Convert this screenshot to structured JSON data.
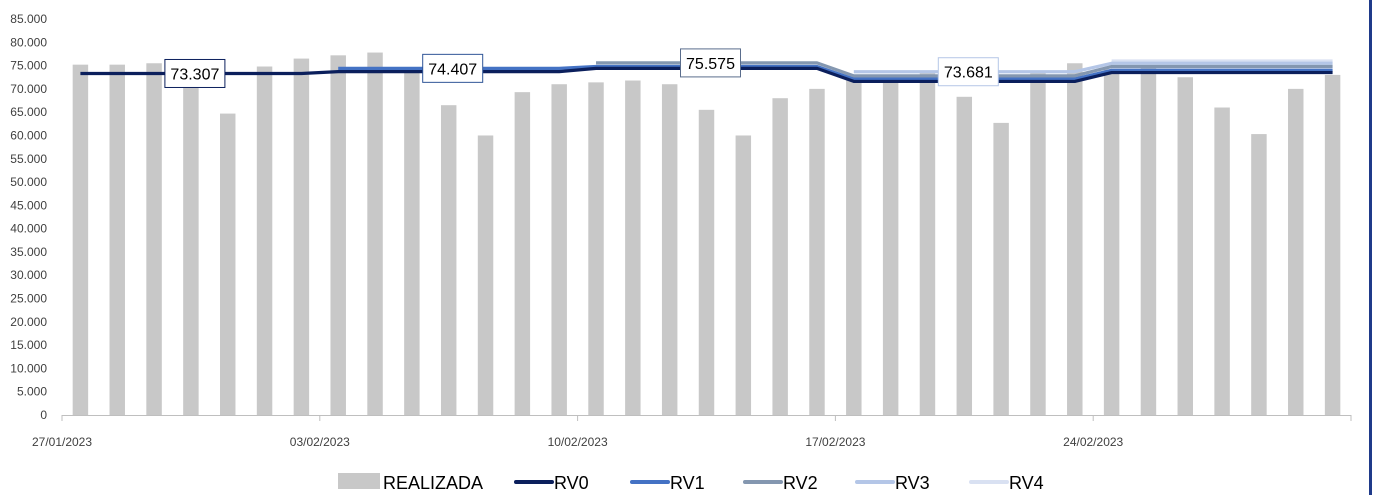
{
  "chart_data": {
    "type": "bar",
    "y_ticks": [
      "0",
      "5.000",
      "10.000",
      "15.000",
      "20.000",
      "25.000",
      "30.000",
      "35.000",
      "40.000",
      "45.000",
      "50.000",
      "55.000",
      "60.000",
      "65.000",
      "70.000",
      "75.000",
      "80.000",
      "85.000"
    ],
    "ylim": [
      0,
      85000
    ],
    "x_tick_labels": [
      "27/01/2023",
      "03/02/2023",
      "10/02/2023",
      "17/02/2023",
      "24/02/2023"
    ],
    "bar_series": {
      "name": "REALIZADA",
      "color": "#c8c8c8",
      "values": [
        75200,
        75200,
        75500,
        71500,
        64700,
        74800,
        76500,
        77200,
        77800,
        74000,
        66500,
        60000,
        69300,
        71000,
        71400,
        71800,
        71000,
        65500,
        60000,
        68000,
        70000,
        72500,
        73000,
        73800,
        68300,
        62700,
        73500,
        75500,
        74200,
        75000,
        72500,
        66000,
        60300,
        70000,
        73000
      ]
    },
    "line_series": [
      {
        "name": "RV0",
        "color": "#0b1f5c",
        "segments": [
          {
            "from": 0,
            "to": 6,
            "value": 73307
          },
          {
            "from": 7,
            "to": 13,
            "value": 73700
          },
          {
            "from": 14,
            "to": 20,
            "value": 74400
          },
          {
            "from": 21,
            "to": 27,
            "value": 71600
          },
          {
            "from": 28,
            "to": 34,
            "value": 73500
          }
        ]
      },
      {
        "name": "RV1",
        "color": "#4472c4",
        "segments": [
          {
            "from": 7,
            "to": 13,
            "value": 74407
          },
          {
            "from": 14,
            "to": 20,
            "value": 74800
          },
          {
            "from": 21,
            "to": 27,
            "value": 72100
          },
          {
            "from": 28,
            "to": 34,
            "value": 74000
          }
        ]
      },
      {
        "name": "RV2",
        "color": "#8497b0",
        "segments": [
          {
            "from": 14,
            "to": 20,
            "value": 75575
          },
          {
            "from": 21,
            "to": 27,
            "value": 72800
          },
          {
            "from": 28,
            "to": 34,
            "value": 74800
          }
        ]
      },
      {
        "name": "RV3",
        "color": "#b4c6e7",
        "segments": [
          {
            "from": 21,
            "to": 27,
            "value": 73681
          },
          {
            "from": 28,
            "to": 34,
            "value": 75500
          }
        ]
      },
      {
        "name": "RV4",
        "color": "#d9e1f2",
        "segments": [
          {
            "from": 28,
            "to": 34,
            "value": 76000
          }
        ]
      }
    ],
    "callouts": [
      {
        "text": "73.307",
        "index": 3,
        "value": 73307
      },
      {
        "text": "74.407",
        "index": 10,
        "value": 74407
      },
      {
        "text": "75.575",
        "index": 17,
        "value": 75575
      },
      {
        "text": "73.681",
        "index": 24,
        "value": 73681
      }
    ],
    "legend": {
      "position": "bottom",
      "items": [
        {
          "label": "REALIZADA",
          "kind": "bar",
          "color": "#c8c8c8"
        },
        {
          "label": "RV0",
          "kind": "line",
          "color": "#0b1f5c"
        },
        {
          "label": "RV1",
          "kind": "line",
          "color": "#4472c4"
        },
        {
          "label": "RV2",
          "kind": "line",
          "color": "#8497b0"
        },
        {
          "label": "RV3",
          "kind": "line",
          "color": "#b4c6e7"
        },
        {
          "label": "RV4",
          "kind": "line",
          "color": "#d9e1f2"
        }
      ]
    },
    "grid": false
  }
}
